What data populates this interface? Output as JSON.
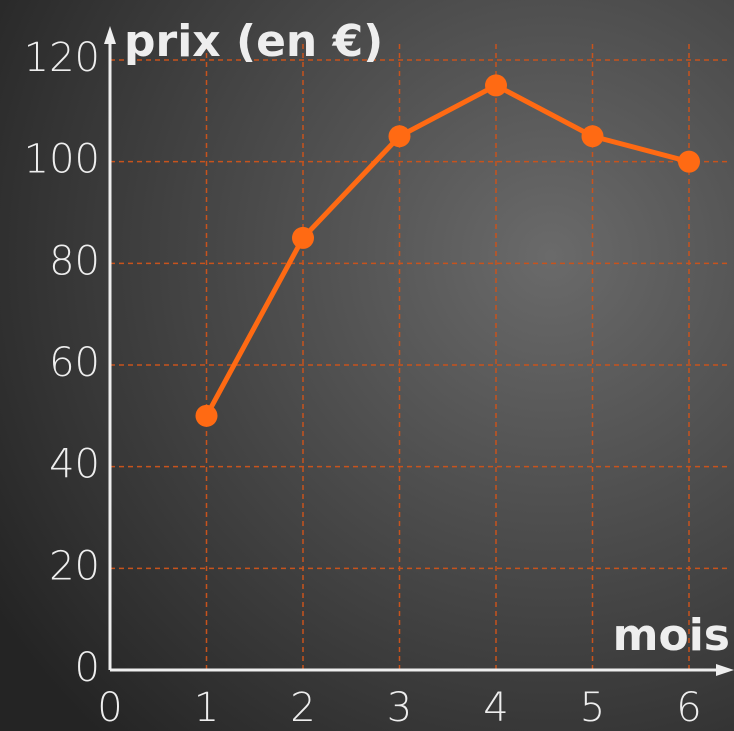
{
  "chart_data": {
    "type": "line",
    "y_label": "prix (en €)",
    "x_label": "mois",
    "x": [
      1,
      2,
      3,
      4,
      5,
      6
    ],
    "series": [
      {
        "name": "prix",
        "color": "#ff6a13",
        "values": [
          50,
          85,
          105,
          115,
          105,
          100
        ]
      }
    ],
    "xlim": [
      0,
      6
    ],
    "xticks": [
      0,
      1,
      2,
      3,
      4,
      5,
      6
    ],
    "ylim": [
      0,
      120
    ],
    "yticks": [
      0,
      20,
      40,
      60,
      80,
      100,
      120
    ],
    "grid": true,
    "grid_color": "#c8531c"
  }
}
